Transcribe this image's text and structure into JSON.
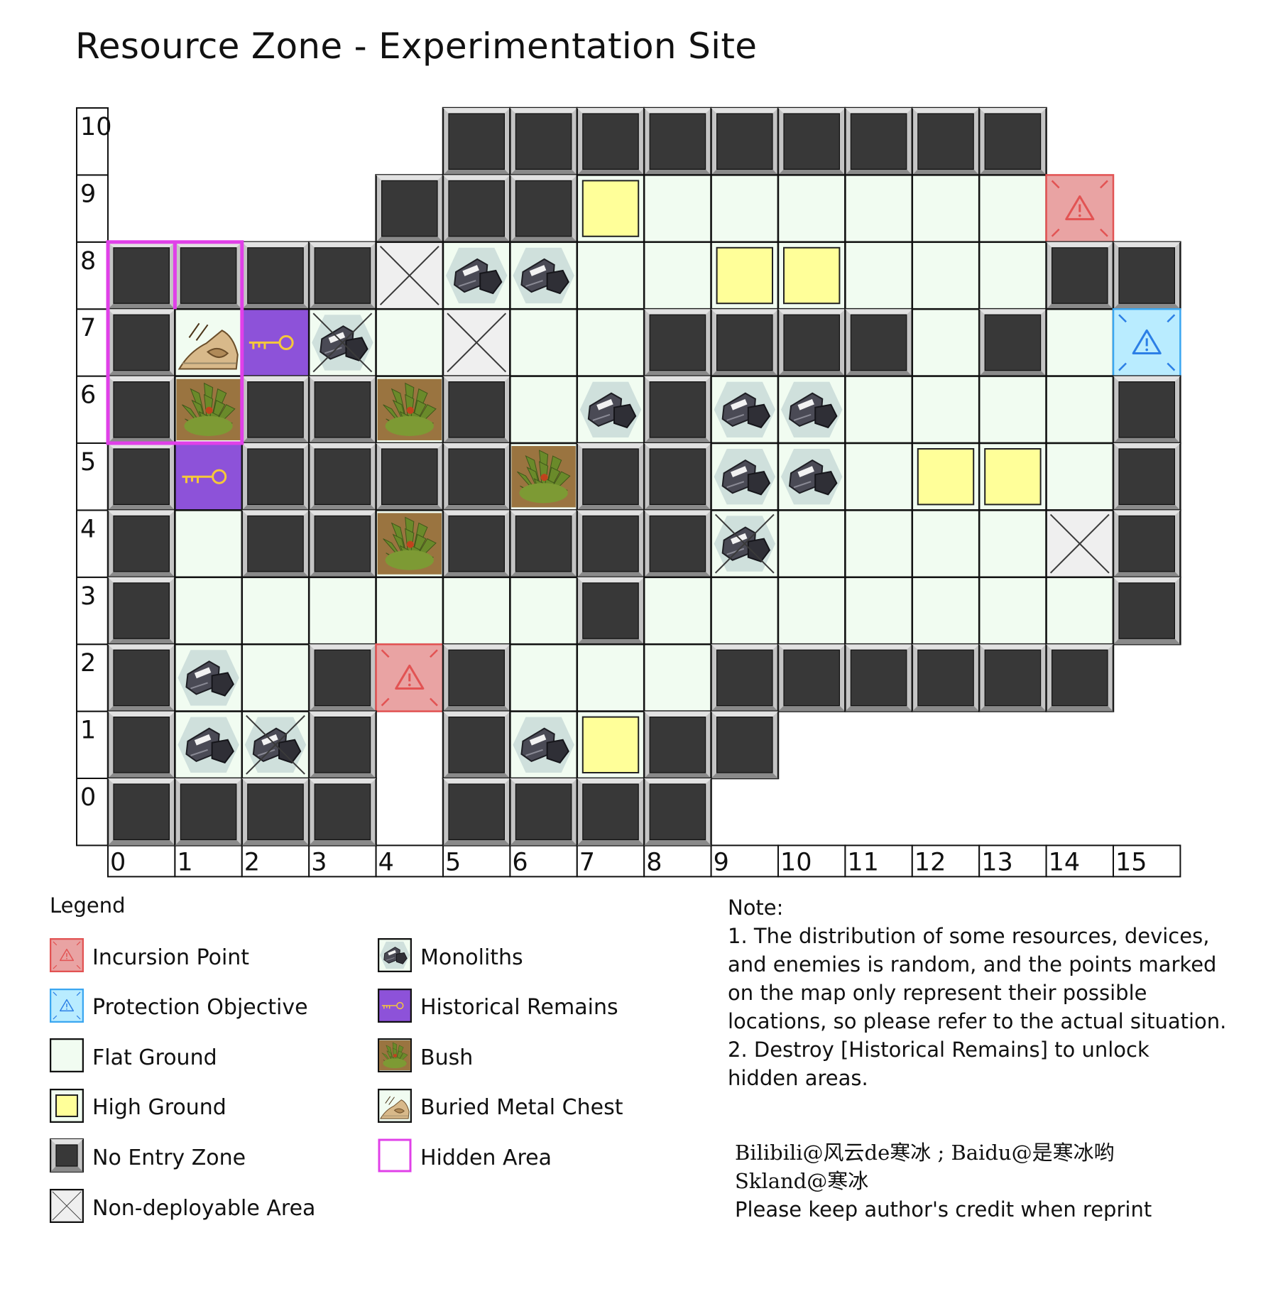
{
  "title": "Resource Zone - Experimentation Site",
  "colors": {
    "no_entry": "#383838",
    "flat": "#f1fcf1",
    "high": "#ffff99",
    "incursion": "#e9a3a3",
    "incursion_border": "#e25353",
    "protection": "#b9ecff",
    "protection_border": "#3aa6f0",
    "historical": "#8d52d9",
    "hidden_border": "#e040e8",
    "non_deploy": "#efefef"
  },
  "grid": {
    "cols": 16,
    "rows": 11,
    "x_labels": [
      "0",
      "1",
      "2",
      "3",
      "4",
      "5",
      "6",
      "7",
      "8",
      "9",
      "10",
      "11",
      "12",
      "13",
      "14",
      "15"
    ],
    "y_labels": [
      "0",
      "1",
      "2",
      "3",
      "4",
      "5",
      "6",
      "7",
      "8",
      "9",
      "10"
    ],
    "cells": [
      {
        "x": 5,
        "y": 10,
        "t": "N"
      },
      {
        "x": 6,
        "y": 10,
        "t": "N"
      },
      {
        "x": 7,
        "y": 10,
        "t": "N"
      },
      {
        "x": 8,
        "y": 10,
        "t": "N"
      },
      {
        "x": 9,
        "y": 10,
        "t": "N"
      },
      {
        "x": 10,
        "y": 10,
        "t": "N"
      },
      {
        "x": 11,
        "y": 10,
        "t": "N"
      },
      {
        "x": 12,
        "y": 10,
        "t": "N"
      },
      {
        "x": 13,
        "y": 10,
        "t": "N"
      },
      {
        "x": 4,
        "y": 9,
        "t": "N"
      },
      {
        "x": 5,
        "y": 9,
        "t": "N"
      },
      {
        "x": 6,
        "y": 9,
        "t": "N"
      },
      {
        "x": 7,
        "y": 9,
        "t": "H"
      },
      {
        "x": 8,
        "y": 9,
        "t": "F"
      },
      {
        "x": 9,
        "y": 9,
        "t": "F"
      },
      {
        "x": 10,
        "y": 9,
        "t": "F"
      },
      {
        "x": 11,
        "y": 9,
        "t": "F"
      },
      {
        "x": 12,
        "y": 9,
        "t": "F"
      },
      {
        "x": 13,
        "y": 9,
        "t": "F"
      },
      {
        "x": 14,
        "y": 9,
        "t": "I"
      },
      {
        "x": 0,
        "y": 8,
        "t": "N"
      },
      {
        "x": 1,
        "y": 8,
        "t": "N"
      },
      {
        "x": 2,
        "y": 8,
        "t": "N"
      },
      {
        "x": 3,
        "y": 8,
        "t": "N"
      },
      {
        "x": 4,
        "y": 8,
        "t": "X"
      },
      {
        "x": 5,
        "y": 8,
        "t": "M"
      },
      {
        "x": 6,
        "y": 8,
        "t": "M"
      },
      {
        "x": 7,
        "y": 8,
        "t": "F"
      },
      {
        "x": 8,
        "y": 8,
        "t": "F"
      },
      {
        "x": 9,
        "y": 8,
        "t": "H"
      },
      {
        "x": 10,
        "y": 8,
        "t": "H"
      },
      {
        "x": 11,
        "y": 8,
        "t": "F"
      },
      {
        "x": 12,
        "y": 8,
        "t": "F"
      },
      {
        "x": 13,
        "y": 8,
        "t": "F"
      },
      {
        "x": 14,
        "y": 8,
        "t": "N"
      },
      {
        "x": 15,
        "y": 8,
        "t": "N"
      },
      {
        "x": 0,
        "y": 7,
        "t": "N"
      },
      {
        "x": 1,
        "y": 7,
        "t": "C"
      },
      {
        "x": 2,
        "y": 7,
        "t": "R"
      },
      {
        "x": 3,
        "y": 7,
        "t": "MX"
      },
      {
        "x": 4,
        "y": 7,
        "t": "F"
      },
      {
        "x": 5,
        "y": 7,
        "t": "X"
      },
      {
        "x": 6,
        "y": 7,
        "t": "F"
      },
      {
        "x": 7,
        "y": 7,
        "t": "F"
      },
      {
        "x": 8,
        "y": 7,
        "t": "N"
      },
      {
        "x": 9,
        "y": 7,
        "t": "N"
      },
      {
        "x": 10,
        "y": 7,
        "t": "N"
      },
      {
        "x": 11,
        "y": 7,
        "t": "N"
      },
      {
        "x": 12,
        "y": 7,
        "t": "F"
      },
      {
        "x": 13,
        "y": 7,
        "t": "N"
      },
      {
        "x": 14,
        "y": 7,
        "t": "F"
      },
      {
        "x": 15,
        "y": 7,
        "t": "P"
      },
      {
        "x": 0,
        "y": 6,
        "t": "N"
      },
      {
        "x": 1,
        "y": 6,
        "t": "B"
      },
      {
        "x": 2,
        "y": 6,
        "t": "N"
      },
      {
        "x": 3,
        "y": 6,
        "t": "N"
      },
      {
        "x": 4,
        "y": 6,
        "t": "B"
      },
      {
        "x": 5,
        "y": 6,
        "t": "N"
      },
      {
        "x": 6,
        "y": 6,
        "t": "F"
      },
      {
        "x": 7,
        "y": 6,
        "t": "M"
      },
      {
        "x": 8,
        "y": 6,
        "t": "N"
      },
      {
        "x": 9,
        "y": 6,
        "t": "M"
      },
      {
        "x": 10,
        "y": 6,
        "t": "M"
      },
      {
        "x": 11,
        "y": 6,
        "t": "F"
      },
      {
        "x": 12,
        "y": 6,
        "t": "F"
      },
      {
        "x": 13,
        "y": 6,
        "t": "F"
      },
      {
        "x": 14,
        "y": 6,
        "t": "F"
      },
      {
        "x": 15,
        "y": 6,
        "t": "N"
      },
      {
        "x": 0,
        "y": 5,
        "t": "N"
      },
      {
        "x": 1,
        "y": 5,
        "t": "R"
      },
      {
        "x": 2,
        "y": 5,
        "t": "N"
      },
      {
        "x": 3,
        "y": 5,
        "t": "N"
      },
      {
        "x": 4,
        "y": 5,
        "t": "N"
      },
      {
        "x": 5,
        "y": 5,
        "t": "N"
      },
      {
        "x": 6,
        "y": 5,
        "t": "B"
      },
      {
        "x": 7,
        "y": 5,
        "t": "N"
      },
      {
        "x": 8,
        "y": 5,
        "t": "N"
      },
      {
        "x": 9,
        "y": 5,
        "t": "M"
      },
      {
        "x": 10,
        "y": 5,
        "t": "M"
      },
      {
        "x": 11,
        "y": 5,
        "t": "F"
      },
      {
        "x": 12,
        "y": 5,
        "t": "H"
      },
      {
        "x": 13,
        "y": 5,
        "t": "H"
      },
      {
        "x": 14,
        "y": 5,
        "t": "F"
      },
      {
        "x": 15,
        "y": 5,
        "t": "N"
      },
      {
        "x": 0,
        "y": 4,
        "t": "N"
      },
      {
        "x": 1,
        "y": 4,
        "t": "F"
      },
      {
        "x": 2,
        "y": 4,
        "t": "N"
      },
      {
        "x": 3,
        "y": 4,
        "t": "N"
      },
      {
        "x": 4,
        "y": 4,
        "t": "B"
      },
      {
        "x": 5,
        "y": 4,
        "t": "N"
      },
      {
        "x": 6,
        "y": 4,
        "t": "N"
      },
      {
        "x": 7,
        "y": 4,
        "t": "N"
      },
      {
        "x": 8,
        "y": 4,
        "t": "N"
      },
      {
        "x": 9,
        "y": 4,
        "t": "MX"
      },
      {
        "x": 10,
        "y": 4,
        "t": "F"
      },
      {
        "x": 11,
        "y": 4,
        "t": "F"
      },
      {
        "x": 12,
        "y": 4,
        "t": "F"
      },
      {
        "x": 13,
        "y": 4,
        "t": "F"
      },
      {
        "x": 14,
        "y": 4,
        "t": "X"
      },
      {
        "x": 15,
        "y": 4,
        "t": "N"
      },
      {
        "x": 0,
        "y": 3,
        "t": "N"
      },
      {
        "x": 1,
        "y": 3,
        "t": "F"
      },
      {
        "x": 2,
        "y": 3,
        "t": "F"
      },
      {
        "x": 3,
        "y": 3,
        "t": "F"
      },
      {
        "x": 4,
        "y": 3,
        "t": "F"
      },
      {
        "x": 5,
        "y": 3,
        "t": "F"
      },
      {
        "x": 6,
        "y": 3,
        "t": "F"
      },
      {
        "x": 7,
        "y": 3,
        "t": "N"
      },
      {
        "x": 8,
        "y": 3,
        "t": "F"
      },
      {
        "x": 9,
        "y": 3,
        "t": "F"
      },
      {
        "x": 10,
        "y": 3,
        "t": "F"
      },
      {
        "x": 11,
        "y": 3,
        "t": "F"
      },
      {
        "x": 12,
        "y": 3,
        "t": "F"
      },
      {
        "x": 13,
        "y": 3,
        "t": "F"
      },
      {
        "x": 14,
        "y": 3,
        "t": "F"
      },
      {
        "x": 15,
        "y": 3,
        "t": "N"
      },
      {
        "x": 0,
        "y": 2,
        "t": "N"
      },
      {
        "x": 1,
        "y": 2,
        "t": "M"
      },
      {
        "x": 2,
        "y": 2,
        "t": "F"
      },
      {
        "x": 3,
        "y": 2,
        "t": "N"
      },
      {
        "x": 4,
        "y": 2,
        "t": "I"
      },
      {
        "x": 5,
        "y": 2,
        "t": "N"
      },
      {
        "x": 6,
        "y": 2,
        "t": "F"
      },
      {
        "x": 7,
        "y": 2,
        "t": "F"
      },
      {
        "x": 8,
        "y": 2,
        "t": "F"
      },
      {
        "x": 9,
        "y": 2,
        "t": "N"
      },
      {
        "x": 10,
        "y": 2,
        "t": "N"
      },
      {
        "x": 11,
        "y": 2,
        "t": "N"
      },
      {
        "x": 12,
        "y": 2,
        "t": "N"
      },
      {
        "x": 13,
        "y": 2,
        "t": "N"
      },
      {
        "x": 14,
        "y": 2,
        "t": "N"
      },
      {
        "x": 0,
        "y": 1,
        "t": "N"
      },
      {
        "x": 1,
        "y": 1,
        "t": "M"
      },
      {
        "x": 2,
        "y": 1,
        "t": "MX"
      },
      {
        "x": 3,
        "y": 1,
        "t": "N"
      },
      {
        "x": 5,
        "y": 1,
        "t": "N"
      },
      {
        "x": 6,
        "y": 1,
        "t": "M"
      },
      {
        "x": 7,
        "y": 1,
        "t": "H"
      },
      {
        "x": 8,
        "y": 1,
        "t": "N"
      },
      {
        "x": 9,
        "y": 1,
        "t": "N"
      },
      {
        "x": 0,
        "y": 0,
        "t": "N"
      },
      {
        "x": 1,
        "y": 0,
        "t": "N"
      },
      {
        "x": 2,
        "y": 0,
        "t": "N"
      },
      {
        "x": 3,
        "y": 0,
        "t": "N"
      },
      {
        "x": 5,
        "y": 0,
        "t": "N"
      },
      {
        "x": 6,
        "y": 0,
        "t": "N"
      },
      {
        "x": 7,
        "y": 0,
        "t": "N"
      },
      {
        "x": 8,
        "y": 0,
        "t": "N"
      }
    ],
    "hidden_area": {
      "x_from": 0,
      "x_to": 1,
      "y_from": 6,
      "y_to": 8
    }
  },
  "legend": {
    "title": "Legend",
    "items": [
      {
        "label": "Incursion Point",
        "icon": "incursion-icon"
      },
      {
        "label": "Protection Objective",
        "icon": "protection-icon"
      },
      {
        "label": "Flat Ground",
        "icon": "flat-ground-icon"
      },
      {
        "label": "High Ground",
        "icon": "high-ground-icon"
      },
      {
        "label": "No Entry Zone",
        "icon": "no-entry-icon"
      },
      {
        "label": "Non-deployable Area",
        "icon": "non-deployable-icon"
      },
      {
        "label": "Monoliths",
        "icon": "monolith-icon"
      },
      {
        "label": "Historical Remains",
        "icon": "key-icon"
      },
      {
        "label": "Bush",
        "icon": "bush-icon"
      },
      {
        "label": "Buried Metal Chest",
        "icon": "chest-icon"
      },
      {
        "label": "Hidden Area",
        "icon": "hidden-area-icon"
      }
    ]
  },
  "note": {
    "lines": [
      "Note:",
      "1. The distribution of some resources, devices,",
      "and enemies is random, and the points marked",
      "on the map only represent their possible",
      "locations, so please refer to the actual situation.",
      "2. Destroy [Historical Remains] to unlock",
      "hidden areas."
    ]
  },
  "credit": {
    "line1": "Bilibili@风云de寒冰 ; Baidu@是寒冰哟",
    "line2": "Skland@寒冰",
    "line3": "Please keep author's credit when reprint"
  }
}
